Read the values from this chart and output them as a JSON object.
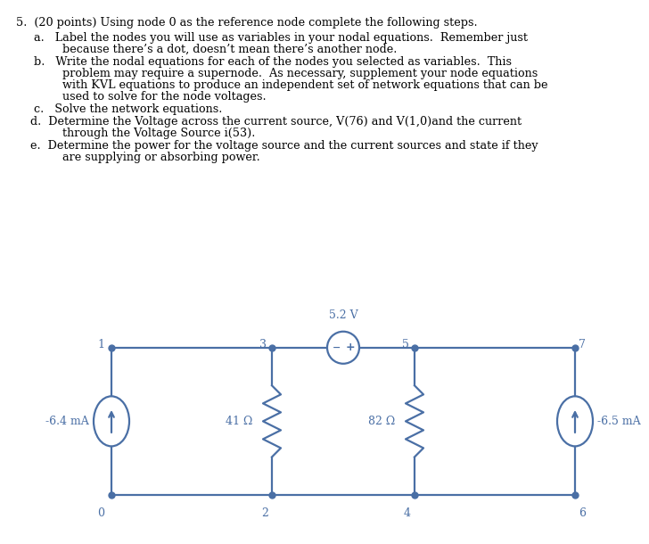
{
  "bg_color": "#ffffff",
  "circuit_color": "#4a6fa5",
  "text_color": "#000000",
  "title": "5.  (20 points) Using node 0 as the reference node complete the following steps.",
  "line_a1": "a.   Label the nodes you will use as variables in your nodal equations.  Remember just",
  "line_a2": "        because there’s a dot, doesn’t mean there’s another node.",
  "line_b1": "b.   Write the nodal equations for each of the nodes you selected as variables.  This",
  "line_b2": "        problem may require a supernode.  As necessary, supplement your node equations",
  "line_b3": "        with KVL equations to produce an independent set of network equations that can be",
  "line_b4": "        used to solve for the node voltages.",
  "line_c": "c.   Solve the network equations.",
  "line_d1": " d.  Determine the Voltage across the current source, V(76) and V(1,0)and the current",
  "line_d2": "        through the Voltage Source i(53).",
  "line_e1": " e.  Determine the power for the voltage source and the current sources and state if they",
  "line_e2": "        are supplying or absorbing power.",
  "vs_label": "5.2 V",
  "r1_label": "41 Ω",
  "r2_label": "82 Ω",
  "cs1_label": "-6.4 mA",
  "cs2_label": "-6.5 mA"
}
